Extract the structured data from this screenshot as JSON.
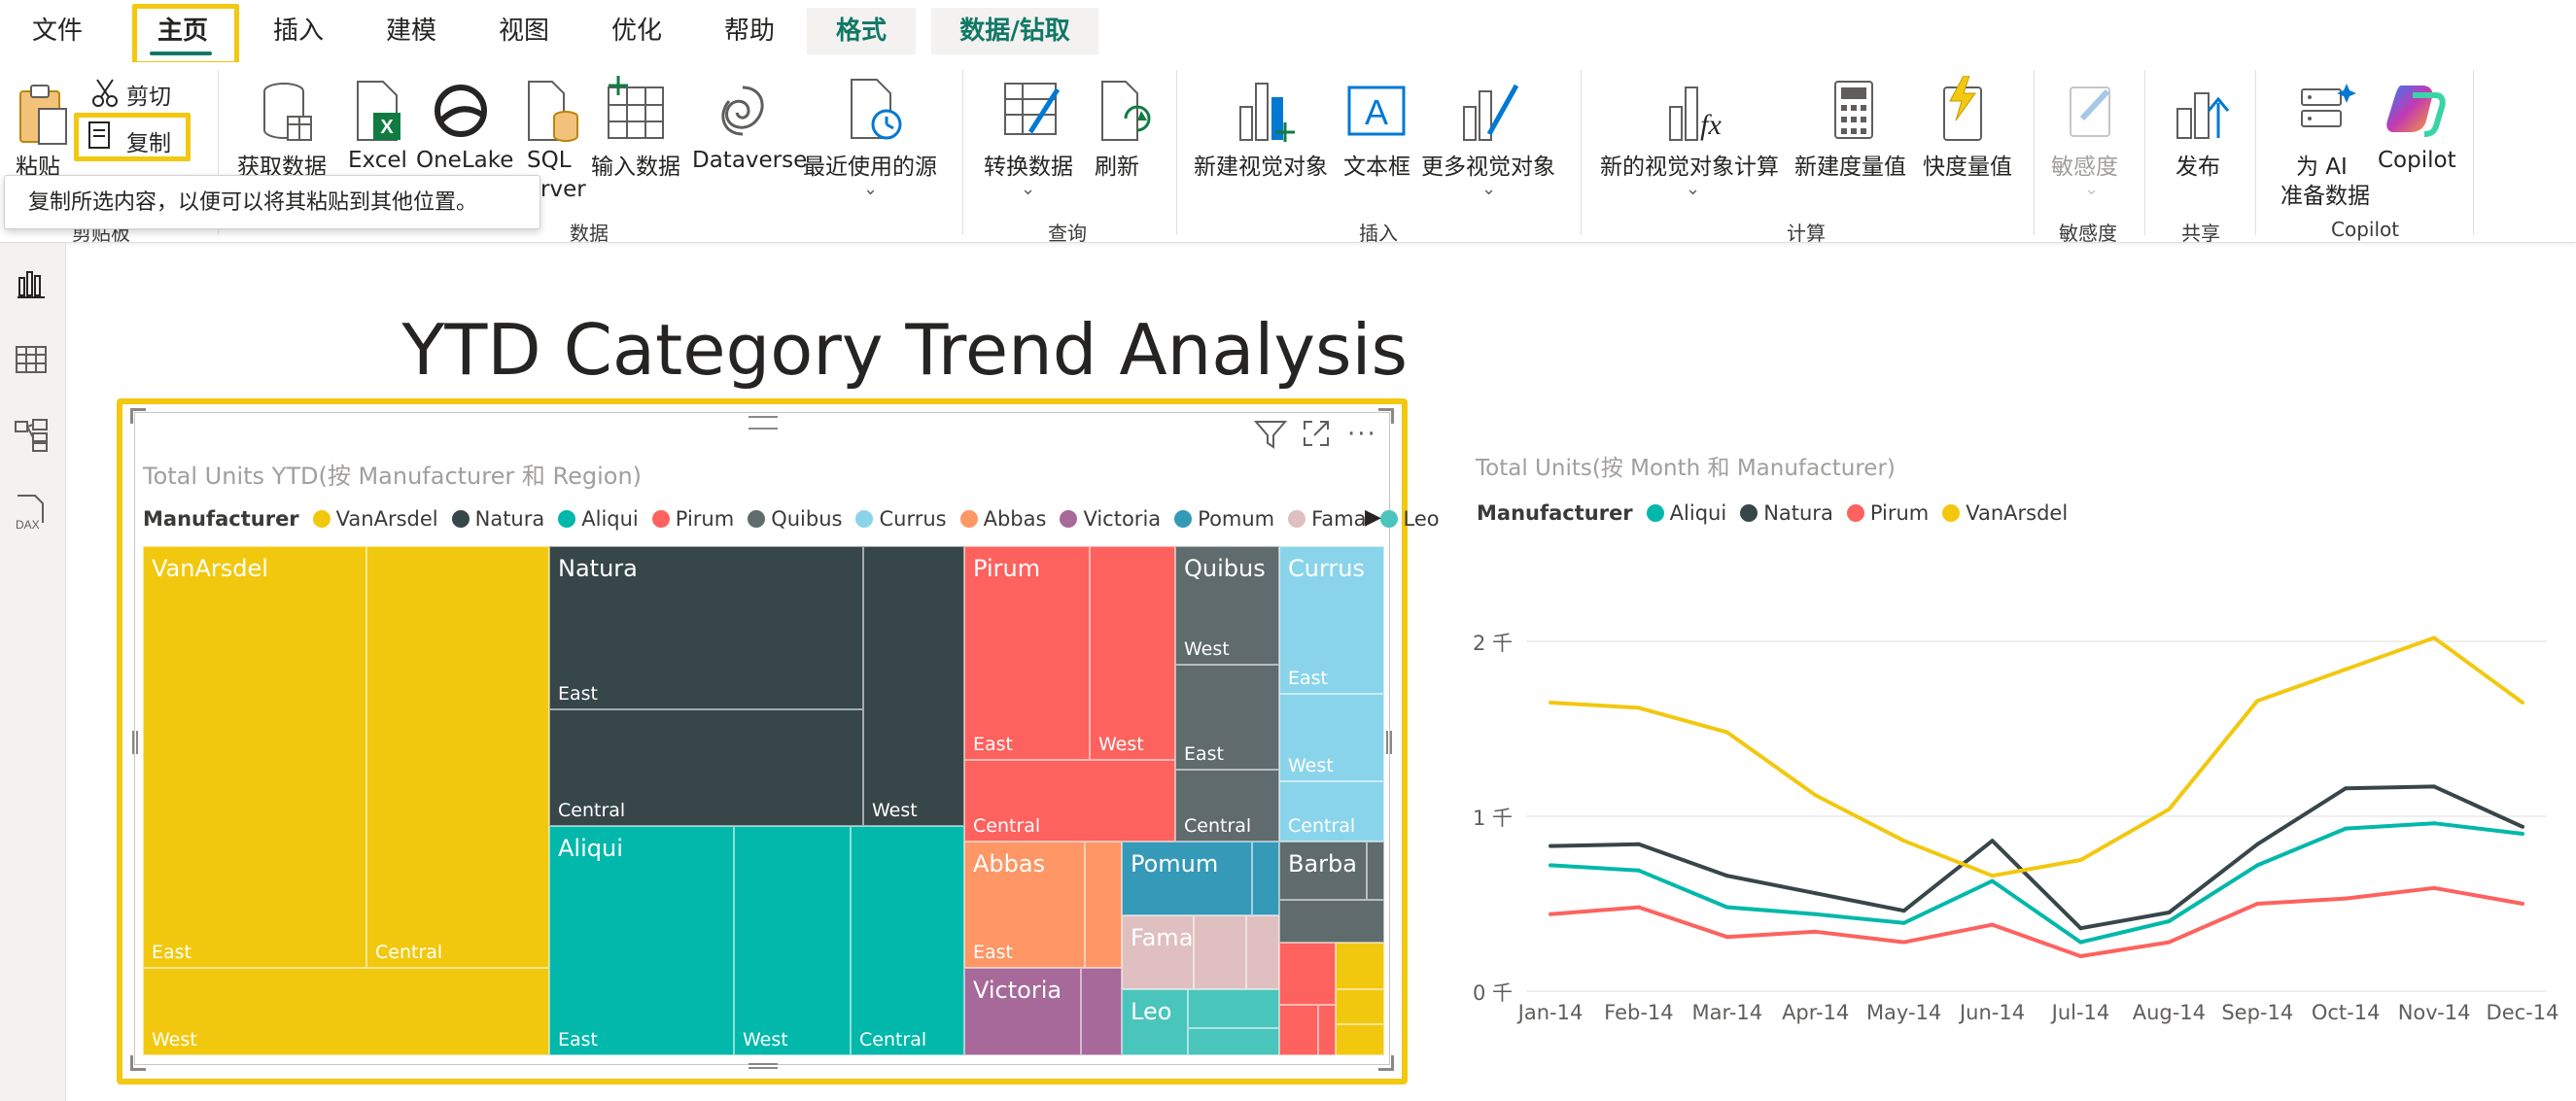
{
  "tabs": [
    {
      "label": "文件"
    },
    {
      "label": "主页"
    },
    {
      "label": "插入"
    },
    {
      "label": "建模"
    },
    {
      "label": "视图"
    },
    {
      "label": "优化"
    },
    {
      "label": "帮助"
    },
    {
      "label": "格式"
    },
    {
      "label": "数据/钻取"
    }
  ],
  "ribbon": {
    "clipboard": {
      "paste": "粘贴",
      "cut": "剪切",
      "copy": "复制",
      "group": "剪贴板"
    },
    "data": {
      "get_data": "获取数据",
      "excel": "Excel",
      "onelake": "OneLake",
      "sql": "SQL",
      "sql2": "rver",
      "enter_data": "输入数据",
      "dataverse": "Dataverse",
      "recent": "最近使用的源",
      "group": "数据"
    },
    "query": {
      "transform": "转换数据",
      "refresh": "刷新",
      "group": "查询"
    },
    "insert": {
      "new_visual": "新建视觉对象",
      "textbox": "文本框",
      "more_visuals": "更多视觉对象",
      "group": "插入"
    },
    "calc": {
      "new_visual_calc": "新的视觉对象计算",
      "new_measure": "新建度量值",
      "quick_measure": "快度量值",
      "group": "计算"
    },
    "sensitivity": {
      "label": "敏感度",
      "group": "敏感度"
    },
    "share": {
      "publish": "发布",
      "group": "共享"
    },
    "copilot": {
      "prepare_ai_1": "为 AI",
      "prepare_ai_2": "准备数据",
      "copilot": "Copilot",
      "group": "Copilot"
    }
  },
  "tooltip": {
    "text": "复制所选内容，以便可以将其粘贴到其他位置。"
  },
  "page": {
    "title": "YTD Category Trend Analysis"
  },
  "treemap": {
    "title": "Total Units YTD(按 Manufacturer 和 Region)",
    "legend_title": "Manufacturer",
    "legend": [
      {
        "name": "VanArsdel",
        "color": "#f2c80f"
      },
      {
        "name": "Natura",
        "color": "#374649"
      },
      {
        "name": "Aliqui",
        "color": "#01b8aa"
      },
      {
        "name": "Pirum",
        "color": "#fd625e"
      },
      {
        "name": "Quibus",
        "color": "#5f6b6d"
      },
      {
        "name": "Currus",
        "color": "#8ad4eb"
      },
      {
        "name": "Abbas",
        "color": "#fe9666"
      },
      {
        "name": "Victoria",
        "color": "#a66999"
      },
      {
        "name": "Pomum",
        "color": "#3599b8"
      },
      {
        "name": "Fama",
        "color": "#dfbfbf"
      },
      {
        "name": "Leo",
        "color": "#4ac5bb"
      }
    ],
    "tiles": {
      "vanarsdel": "VanArsdel",
      "natura": "Natura",
      "aliqui": "Aliqui",
      "pirum": "Pirum",
      "quibus": "Quibus",
      "currus": "Currus",
      "abbas": "Abbas",
      "pomum": "Pomum",
      "fama": "Fama",
      "victoria": "Victoria",
      "leo": "Leo",
      "barba": "Barba"
    },
    "regions": {
      "east": "East",
      "central": "Central",
      "west": "West"
    }
  },
  "linechart": {
    "title": "Total Units(按 Month 和 Manufacturer)",
    "legend_title": "Manufacturer",
    "legend": [
      {
        "name": "Aliqui",
        "color": "#01b8aa"
      },
      {
        "name": "Natura",
        "color": "#374649"
      },
      {
        "name": "Pirum",
        "color": "#fd625e"
      },
      {
        "name": "VanArsdel",
        "color": "#f2c80f"
      }
    ],
    "y_ticks": [
      "2 千",
      "1 千",
      "0 千"
    ]
  },
  "chart_data": {
    "type": "line",
    "title": "Total Units(按 Month 和 Manufacturer)",
    "xlabel": "",
    "ylabel": "",
    "ylim": [
      0,
      2200
    ],
    "categories": [
      "Jan-14",
      "Feb-14",
      "Mar-14",
      "Apr-14",
      "May-14",
      "Jun-14",
      "Jul-14",
      "Aug-14",
      "Sep-14",
      "Oct-14",
      "Nov-14",
      "Dec-14"
    ],
    "series": [
      {
        "name": "Aliqui",
        "color": "#01b8aa",
        "values": [
          720,
          690,
          480,
          440,
          390,
          630,
          280,
          400,
          720,
          930,
          960,
          900
        ]
      },
      {
        "name": "Natura",
        "color": "#374649",
        "values": [
          830,
          840,
          660,
          560,
          460,
          860,
          360,
          450,
          840,
          1160,
          1170,
          940
        ]
      },
      {
        "name": "Pirum",
        "color": "#fd625e",
        "values": [
          440,
          480,
          310,
          340,
          280,
          380,
          200,
          280,
          500,
          530,
          590,
          500
        ]
      },
      {
        "name": "VanArsdel",
        "color": "#f2c80f",
        "values": [
          1650,
          1620,
          1480,
          1120,
          860,
          660,
          750,
          1040,
          1660,
          1840,
          2020,
          1650
        ]
      }
    ]
  }
}
